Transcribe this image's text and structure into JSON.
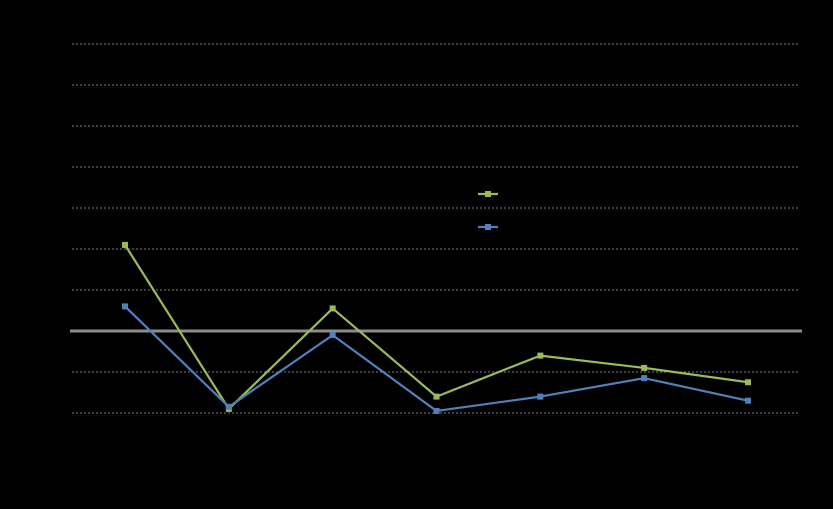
{
  "chart_data": {
    "type": "line",
    "title": "",
    "xlabel": "",
    "ylabel": "",
    "x": [
      1,
      2,
      3,
      4,
      5,
      6,
      7
    ],
    "ylim": [
      -2,
      7
    ],
    "y_gridlines": [
      -2,
      -1,
      1,
      2,
      3,
      4,
      5,
      6,
      7
    ],
    "zero_line": 0,
    "grid": true,
    "legend": "center-right",
    "series": [
      {
        "color": "#9BBB59",
        "values": [
          2.1,
          -1.9,
          0.55,
          -1.6,
          -0.6,
          -0.9,
          -1.25
        ]
      },
      {
        "color": "#4F81BD",
        "values": [
          0.6,
          -1.85,
          -0.1,
          -1.95,
          -1.6,
          -1.15,
          -1.7
        ]
      }
    ]
  },
  "colors": {
    "background": "#000000",
    "grid": "#7F7F7F",
    "zero_line": "#8C8C8C"
  }
}
